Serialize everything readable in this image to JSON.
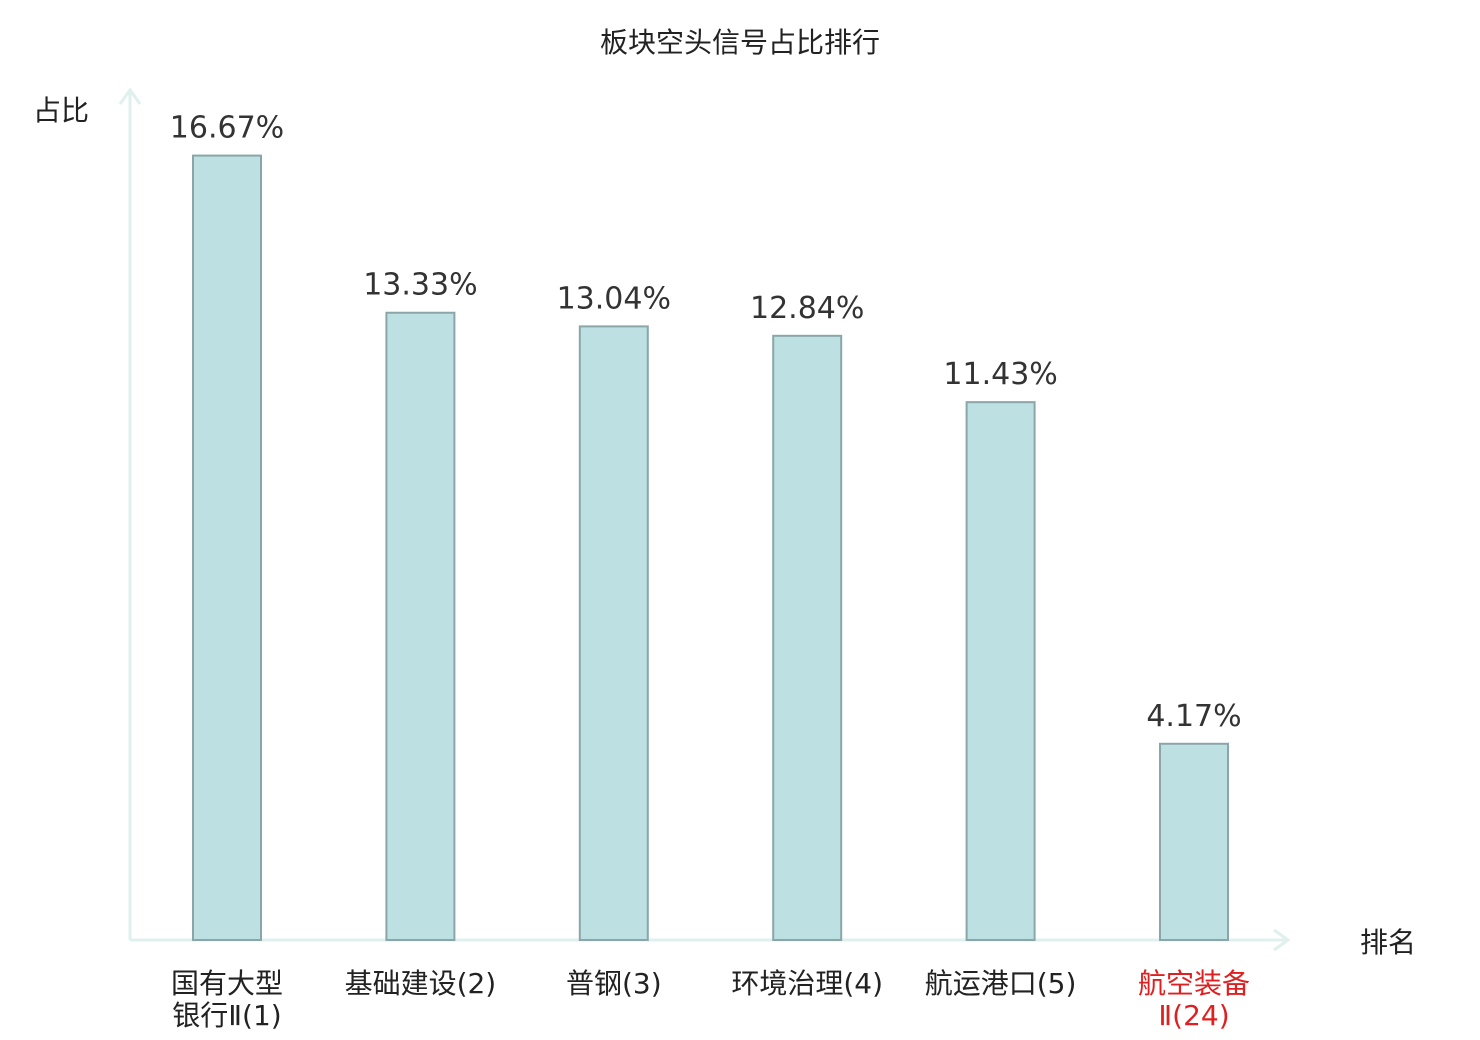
{
  "chart_data": {
    "type": "bar",
    "title": "板块空头信号占比排行",
    "ylabel": "占比",
    "xlabel": "排名",
    "ylim": [
      0,
      0.18
    ],
    "categories": [
      {
        "lines": [
          "国有大型",
          "银行Ⅱ(1)"
        ],
        "highlight": false
      },
      {
        "lines": [
          "基础建设(2)"
        ],
        "highlight": false
      },
      {
        "lines": [
          "普钢(3)"
        ],
        "highlight": false
      },
      {
        "lines": [
          "环境治理(4)"
        ],
        "highlight": false
      },
      {
        "lines": [
          "航运港口(5)"
        ],
        "highlight": false
      },
      {
        "lines": [
          "航空装备",
          "Ⅱ(24)"
        ],
        "highlight": true
      }
    ],
    "values": [
      0.1667,
      0.1333,
      0.1304,
      0.1284,
      0.1143,
      0.0417
    ],
    "value_labels": [
      "16.67%",
      "13.33%",
      "13.04%",
      "12.84%",
      "11.43%",
      "4.17%"
    ],
    "grid": false,
    "colors": {
      "bar_fill": "#bde0e2",
      "bar_stroke": "#8aa6a8",
      "axis": "#dff0ee",
      "label": "#222222",
      "highlight": "#e02020"
    }
  }
}
